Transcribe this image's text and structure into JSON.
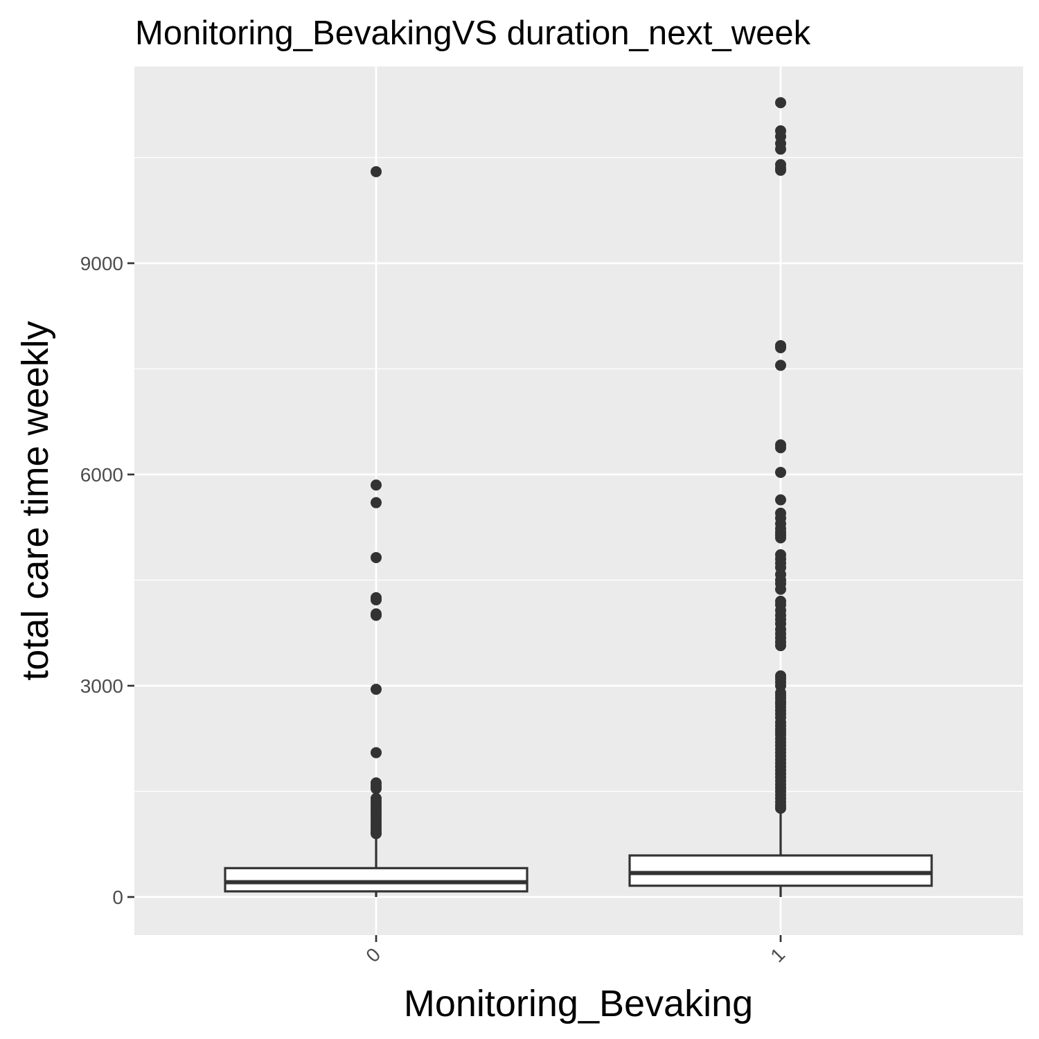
{
  "chart_data": {
    "type": "boxplot",
    "title": "Monitoring_BevakingVS duration_next_week",
    "xlabel": "Monitoring_Bevaking",
    "ylabel": "total care time weekly",
    "ylim": [
      -540,
      11920
    ],
    "y_ticks": [
      0,
      3000,
      6000,
      9000
    ],
    "y_tick_labels": [
      "0",
      "3000",
      "6000",
      "9000"
    ],
    "categories": [
      "0",
      "1"
    ],
    "grid": true,
    "legend": "none",
    "colors": {
      "panel": "#ebebeb",
      "grid": "#ffffff",
      "box": "#333333",
      "point": "#333333"
    },
    "boxes": [
      {
        "category": "0",
        "q1": 80,
        "median": 210,
        "q3": 410,
        "whisker_low": 0,
        "whisker_high": 860,
        "outliers": [
          10300,
          5850,
          5600,
          4820,
          4250,
          4220,
          4020,
          4000,
          2950,
          2050,
          1620,
          1580,
          1540,
          1400,
          1360,
          1320,
          1280,
          1240,
          1200,
          1160,
          1120,
          1080,
          1040,
          1000,
          960,
          920,
          900
        ]
      },
      {
        "category": "1",
        "q1": 160,
        "median": 340,
        "q3": 590,
        "whisker_low": 0,
        "whisker_high": 1220,
        "outliers": [
          11280,
          10880,
          10800,
          10700,
          10620,
          10400,
          10350,
          10320,
          7830,
          7800,
          7550,
          6420,
          6380,
          6030,
          5640,
          5450,
          5380,
          5300,
          5230,
          5180,
          5140,
          5100,
          4860,
          4800,
          4740,
          4680,
          4580,
          4500,
          4450,
          4370,
          4200,
          4150,
          4070,
          4000,
          3940,
          3880,
          3800,
          3740,
          3680,
          3620,
          3570,
          3140,
          3100,
          3050,
          3000,
          2900,
          2860,
          2820,
          2770,
          2740,
          2700,
          2650,
          2600,
          2550,
          2480,
          2430,
          2380,
          2340,
          2300,
          2250,
          2200,
          2150,
          2100,
          2050,
          2000,
          1950,
          1900,
          1850,
          1800,
          1750,
          1700,
          1650,
          1600,
          1550,
          1500,
          1450,
          1400,
          1350,
          1300,
          1260
        ]
      }
    ]
  }
}
